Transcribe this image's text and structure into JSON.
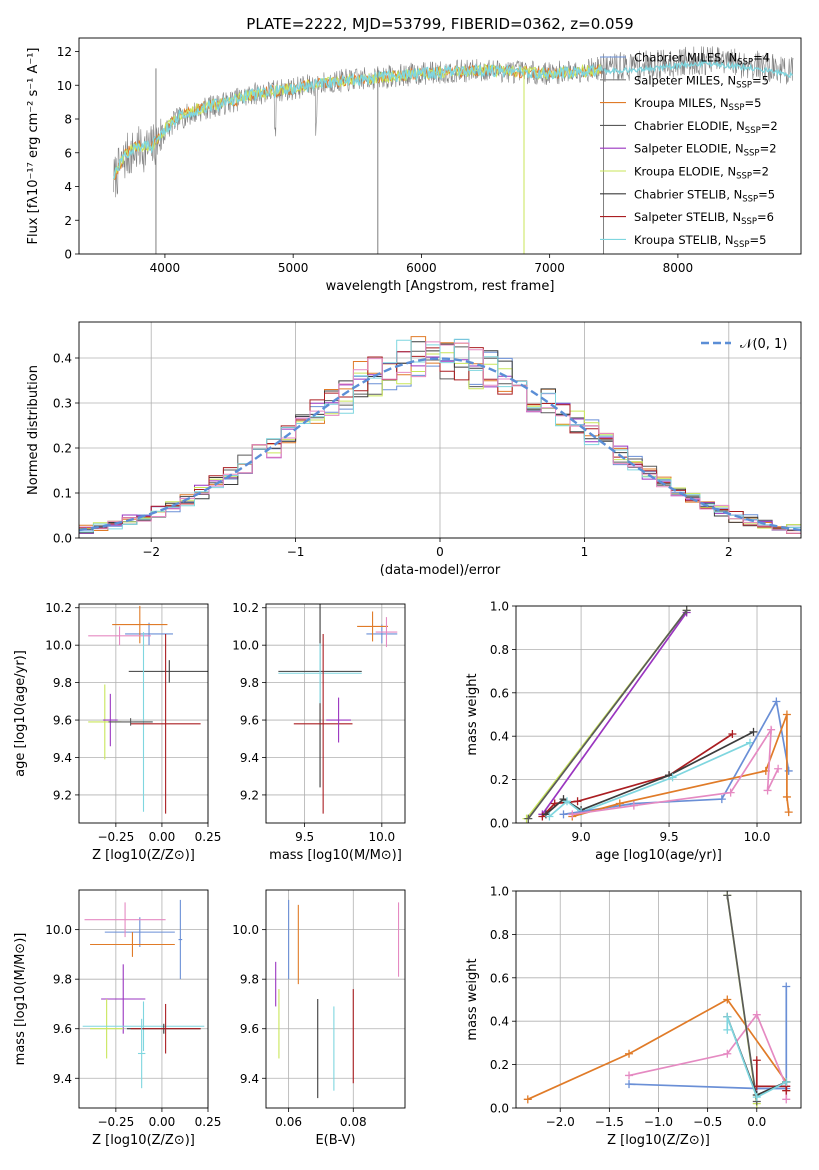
{
  "title": "PLATE=2222, MJD=53799, FIBERID=0362, z=0.059",
  "colors": {
    "chab_miles": "#6a8fd6",
    "salp_miles": "#808080",
    "krou_miles": "#e07b28",
    "chab_elodie": "#5a5a5a",
    "salp_elodie": "#9a35c0",
    "krou_elodie": "#c9e65a",
    "chab_stelib": "#3c3c3c",
    "salp_stelib": "#aa1e22",
    "krou_stelib": "#7fd6df",
    "pink": "#e58ac2",
    "normal": "#5b8ed6"
  },
  "chart_data": [
    {
      "type": "line",
      "name": "spectrum",
      "xlabel": "wavelength [Angstrom, rest frame]",
      "ylabel": "Flux [fλ10⁻¹⁷ erg cm⁻² s⁻¹ A⁻¹]",
      "xlim": [
        3330,
        8960
      ],
      "ylim": [
        0,
        12.8
      ],
      "xticks": [
        "4000",
        "5000",
        "6000",
        "7000",
        "8000"
      ],
      "yticks": [
        "0",
        "2",
        "4",
        "6",
        "8",
        "10",
        "12"
      ],
      "legend_placement": "right",
      "legend": [
        "Chabrier MILES, N_SSP=4",
        "Salpeter MILES, N_SSP=5",
        "Kroupa MILES, N_SSP=5",
        "Chabrier ELODIE, N_SSP=2",
        "Salpeter ELODIE, N_SSP=2",
        "Kroupa ELODIE, N_SSP=2",
        "Chabrier STELIB, N_SSP=5",
        "Salpeter STELIB, N_SSP=6",
        "Kroupa STELIB, N_SSP=5"
      ],
      "continuum": {
        "x": [
          3600,
          3700,
          3800,
          3900,
          4000,
          4100,
          4300,
          4500,
          4700,
          5000,
          5300,
          5600,
          6000,
          6500,
          7000,
          7400
        ],
        "y": [
          4.6,
          6.0,
          6.4,
          6.4,
          7.4,
          8.1,
          8.7,
          9.0,
          9.5,
          9.8,
          10.2,
          10.4,
          10.7,
          10.9,
          10.7,
          10.9
        ]
      },
      "obs_continuum": {
        "x": [
          3600,
          3700,
          3800,
          3900,
          4000,
          4100,
          4300,
          4500,
          4700,
          5000,
          5300,
          5600,
          6000,
          6500,
          7000,
          7400,
          7800,
          8200,
          8600,
          8900
        ],
        "y": [
          4.4,
          5.8,
          6.2,
          6.3,
          7.3,
          8.0,
          8.6,
          9.0,
          9.5,
          9.8,
          10.2,
          10.4,
          10.7,
          10.9,
          10.7,
          11.0,
          11.2,
          11.5,
          11.2,
          10.8
        ]
      },
      "deep_lines": [
        3930,
        5660,
        6800,
        7420
      ]
    },
    {
      "type": "line",
      "name": "residuals",
      "xlabel": "(data-model)/error",
      "ylabel": "Normed distribution",
      "xlim": [
        -2.5,
        2.5
      ],
      "ylim": [
        0,
        0.48
      ],
      "xticks": [
        "−2",
        "−1",
        "0",
        "1",
        "2"
      ],
      "yticks": [
        "0.0",
        "0.1",
        "0.2",
        "0.3",
        "0.4"
      ],
      "legend": [
        "𝒩(0, 1)"
      ],
      "legend_placement": "top-right",
      "bin_width": 0.1,
      "gaussian_sigma": 1.0
    },
    {
      "type": "scatter",
      "name": "z-vs-age",
      "xlabel": "Z [log10(Z/Z⊙)]",
      "ylabel": "age  [log10(age/yr)]",
      "xlim": [
        -0.45,
        0.25
      ],
      "ylim": [
        9.05,
        10.22
      ],
      "xticks": [
        "−0.25",
        "0.00",
        "0.25"
      ],
      "yticks": [
        "9.2",
        "9.4",
        "9.6",
        "9.8",
        "10.0",
        "10.2"
      ],
      "points": [
        {
          "c": "chab_miles",
          "x": -0.07,
          "y": 10.06,
          "xe": 0.13,
          "ye": 0.06
        },
        {
          "c": "krou_miles",
          "x": -0.12,
          "y": 10.11,
          "xe": 0.15,
          "ye": 0.1
        },
        {
          "c": "pink",
          "x": -0.23,
          "y": 10.05,
          "xe": 0.17,
          "ye": 0.05
        },
        {
          "c": "krou_elodie",
          "x": -0.31,
          "y": 9.59,
          "xe": 0.09,
          "ye": 0.2
        },
        {
          "c": "salp_elodie",
          "x": -0.28,
          "y": 9.6,
          "xe": 0.04,
          "ye": 0.14
        },
        {
          "c": "chab_stelib",
          "x": 0.04,
          "y": 9.86,
          "xe": 0.22,
          "ye": 0.06
        },
        {
          "c": "krou_stelib",
          "x": -0.1,
          "y": 9.59,
          "xe": 0.05,
          "ye": 0.48
        },
        {
          "c": "salp_stelib",
          "x": 0.02,
          "y": 9.58,
          "xe": 0.19,
          "ye": 0.48
        },
        {
          "c": "chab_elodie",
          "x": -0.17,
          "y": 9.59,
          "xe": 0.12,
          "ye": 0.02
        }
      ]
    },
    {
      "type": "scatter",
      "name": "mass-vs-age",
      "xlabel": "mass [log10(M/M⊙)]",
      "ylabel": "",
      "xlim": [
        9.25,
        10.15
      ],
      "ylim": [
        9.05,
        10.22
      ],
      "xticks": [
        "9.5",
        "10.0"
      ],
      "yticks": [
        "9.2",
        "9.4",
        "9.6",
        "9.8",
        "10.0",
        "10.2"
      ],
      "points": [
        {
          "c": "chab_miles",
          "x": 10.0,
          "y": 10.06,
          "xe": 0.1,
          "ye": 0.05
        },
        {
          "c": "krou_miles",
          "x": 9.94,
          "y": 10.1,
          "xe": 0.1,
          "ye": 0.08
        },
        {
          "c": "pink",
          "x": 10.03,
          "y": 10.07,
          "xe": 0.07,
          "ye": 0.08
        },
        {
          "c": "chab_stelib",
          "x": 9.6,
          "y": 9.86,
          "xe": 0.27,
          "ye": 0.62
        },
        {
          "c": "krou_stelib",
          "x": 9.6,
          "y": 9.85,
          "xe": 0.27,
          "ye": 0.16
        },
        {
          "c": "salp_stelib",
          "x": 9.62,
          "y": 9.58,
          "xe": 0.19,
          "ye": 0.48
        },
        {
          "c": "salp_elodie",
          "x": 9.72,
          "y": 9.6,
          "xe": 0.08,
          "ye": 0.12
        }
      ]
    },
    {
      "type": "line",
      "name": "age-vs-mass-weight",
      "xlabel": "age  [log10(age/yr)]",
      "ylabel": "mass weight",
      "xlim": [
        8.63,
        10.25
      ],
      "ylim": [
        0,
        1.0
      ],
      "xticks": [
        "9.0",
        "9.5",
        "10.0"
      ],
      "yticks": [
        "0.0",
        "0.2",
        "0.4",
        "0.6",
        "0.8",
        "1.0"
      ],
      "series": [
        {
          "c": "krou_elodie",
          "x": [
            8.69,
            9.6
          ],
          "y": [
            0.02,
            0.98
          ]
        },
        {
          "c": "salp_elodie",
          "x": [
            8.78,
            9.6
          ],
          "y": [
            0.04,
            0.97
          ]
        },
        {
          "c": "chab_elodie",
          "x": [
            8.7,
            9.6
          ],
          "y": [
            0.02,
            0.98
          ]
        },
        {
          "c": "salp_stelib",
          "x": [
            8.78,
            8.85,
            8.98,
            9.5,
            9.86
          ],
          "y": [
            0.03,
            0.09,
            0.1,
            0.22,
            0.41
          ]
        },
        {
          "c": "chab_stelib",
          "x": [
            8.8,
            8.9,
            9.0,
            9.5,
            9.98
          ],
          "y": [
            0.04,
            0.11,
            0.06,
            0.22,
            0.42
          ]
        },
        {
          "c": "krou_stelib",
          "x": [
            8.82,
            8.92,
            9.0,
            9.52,
            9.96
          ],
          "y": [
            0.03,
            0.1,
            0.05,
            0.21,
            0.37
          ]
        },
        {
          "c": "chab_miles",
          "x": [
            8.9,
            9.3,
            9.8,
            10.11,
            10.18
          ],
          "y": [
            0.04,
            0.09,
            0.11,
            0.56,
            0.24
          ]
        },
        {
          "c": "krou_miles",
          "x": [
            8.95,
            9.22,
            10.05,
            10.17,
            10.17,
            10.18
          ],
          "y": [
            0.03,
            0.09,
            0.24,
            0.5,
            0.12,
            0.05
          ]
        },
        {
          "c": "pink",
          "x": [
            8.95,
            9.3,
            9.85,
            10.08,
            10.06,
            10.12
          ],
          "y": [
            0.04,
            0.08,
            0.14,
            0.43,
            0.15,
            0.25
          ]
        }
      ]
    },
    {
      "type": "scatter",
      "name": "z-vs-mass",
      "xlabel": "Z [log10(Z/Z⊙)]",
      "ylabel": "mass [log10(M/M⊙)]",
      "xlim": [
        -0.45,
        0.25
      ],
      "ylim": [
        9.28,
        10.16
      ],
      "xticks": [
        "−0.25",
        "0.00",
        "0.25"
      ],
      "yticks": [
        "9.4",
        "9.6",
        "9.8",
        "10.0"
      ],
      "points": [
        {
          "c": "chab_miles",
          "x": -0.12,
          "y": 9.99,
          "xe": 0.19,
          "ye": 0.06
        },
        {
          "c": "krou_miles",
          "x": -0.16,
          "y": 9.94,
          "xe": 0.23,
          "ye": 0.05
        },
        {
          "c": "pink",
          "x": -0.2,
          "y": 10.04,
          "xe": 0.22,
          "ye": 0.07
        },
        {
          "c": "chab_miles",
          "x": 0.1,
          "y": 9.96,
          "xe": 0.01,
          "ye": 0.16
        },
        {
          "c": "salp_elodie",
          "x": -0.21,
          "y": 9.72,
          "xe": 0.12,
          "ye": 0.14
        },
        {
          "c": "krou_elodie",
          "x": -0.3,
          "y": 9.6,
          "xe": 0.09,
          "ye": 0.12
        },
        {
          "c": "krou_stelib",
          "x": -0.1,
          "y": 9.61,
          "xe": 0.33,
          "ye": 0.1
        },
        {
          "c": "chab_stelib",
          "x": 0.01,
          "y": 9.6,
          "xe": 0.2,
          "ye": 0.02
        },
        {
          "c": "salp_stelib",
          "x": 0.02,
          "y": 9.6,
          "xe": 0.19,
          "ye": 0.1
        },
        {
          "c": "krou_stelib",
          "x": -0.11,
          "y": 9.5,
          "xe": 0.02,
          "ye": 0.14
        }
      ]
    },
    {
      "type": "scatter",
      "name": "ebv-vs-mass",
      "xlabel": "E(B-V)",
      "ylabel": "",
      "xlim": [
        0.053,
        0.096
      ],
      "ylim": [
        9.28,
        10.16
      ],
      "xticks": [
        "0.06",
        "0.08"
      ],
      "yticks": [
        "9.4",
        "9.6",
        "9.8",
        "10.0"
      ],
      "points": [
        {
          "c": "salp_elodie",
          "x": 0.056,
          "y": 9.78,
          "xe": 0,
          "ye": 0.09
        },
        {
          "c": "krou_elodie",
          "x": 0.057,
          "y": 9.62,
          "xe": 0,
          "ye": 0.14
        },
        {
          "c": "chab_miles",
          "x": 0.06,
          "y": 9.96,
          "xe": 0,
          "ye": 0.16
        },
        {
          "c": "krou_miles",
          "x": 0.063,
          "y": 9.94,
          "xe": 0,
          "ye": 0.16
        },
        {
          "c": "chab_stelib",
          "x": 0.069,
          "y": 9.52,
          "xe": 0,
          "ye": 0.2
        },
        {
          "c": "krou_stelib",
          "x": 0.074,
          "y": 9.52,
          "xe": 0,
          "ye": 0.17
        },
        {
          "c": "salp_stelib",
          "x": 0.08,
          "y": 9.57,
          "xe": 0,
          "ye": 0.19
        },
        {
          "c": "pink",
          "x": 0.094,
          "y": 9.96,
          "xe": 0,
          "ye": 0.15
        }
      ]
    },
    {
      "type": "line",
      "name": "z-vs-mass-weight",
      "xlabel": "Z [log10(Z/Z⊙)]",
      "ylabel": "mass weight",
      "xlim": [
        -2.45,
        0.45
      ],
      "ylim": [
        0,
        1.0
      ],
      "xticks": [
        "−2.0",
        "−1.5",
        "−1.0",
        "−0.5",
        "0.0"
      ],
      "yticks": [
        "0.0",
        "0.2",
        "0.4",
        "0.6",
        "0.8",
        "1.0"
      ],
      "series": [
        {
          "c": "krou_miles",
          "x": [
            -2.33,
            -1.3,
            -0.3,
            0.3,
            0.3
          ],
          "y": [
            0.04,
            0.25,
            0.5,
            0.12,
            0.08
          ]
        },
        {
          "c": "chab_miles",
          "x": [
            -1.3,
            0.0,
            0.3,
            0.3
          ],
          "y": [
            0.11,
            0.09,
            0.09,
            0.56
          ]
        },
        {
          "c": "pink",
          "x": [
            -1.3,
            -0.3,
            0.0,
            0.3,
            0.3
          ],
          "y": [
            0.15,
            0.25,
            0.43,
            0.1,
            0.04
          ]
        },
        {
          "c": "krou_elodie",
          "x": [
            -0.3,
            0.0
          ],
          "y": [
            0.98,
            0.02
          ]
        },
        {
          "c": "chab_elodie",
          "x": [
            -0.3,
            0.0
          ],
          "y": [
            0.98,
            0.03
          ]
        },
        {
          "c": "salp_stelib",
          "x": [
            0.0,
            0.0,
            0.3,
            0.3
          ],
          "y": [
            0.22,
            0.1,
            0.1,
            0.08
          ]
        },
        {
          "c": "chab_stelib",
          "x": [
            -0.3,
            0.0,
            0.3
          ],
          "y": [
            0.42,
            0.06,
            0.12
          ]
        },
        {
          "c": "krou_stelib",
          "x": [
            -0.3,
            -0.3,
            0.0,
            0.3
          ],
          "y": [
            0.36,
            0.42,
            0.05,
            0.12
          ]
        }
      ]
    }
  ]
}
